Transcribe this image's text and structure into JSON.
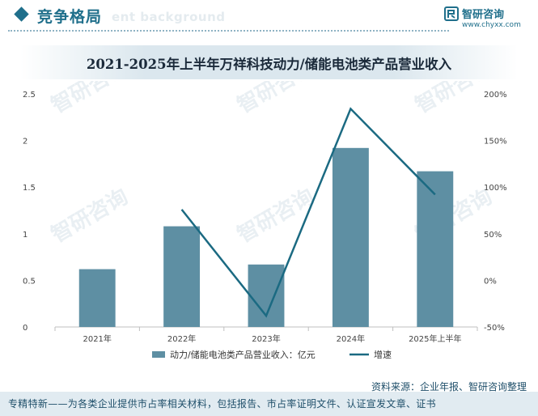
{
  "header": {
    "title": "竞争格局",
    "watermark_text": "ent background",
    "brand_name": "智研咨询",
    "brand_url": "www.chyxx.com"
  },
  "watermark_text": "智研咨询",
  "colors": {
    "accent": "#1f6f8b",
    "bar": "#5e8fa3",
    "line": "#1b6a82",
    "title_band": "#dbe7ee",
    "footer_band": "#e1ebf1"
  },
  "chart_data": {
    "type": "bar",
    "title": "2021-2025年上半年万祥科技动力/储能电池类产品营业收入",
    "categories": [
      "2021年",
      "2022年",
      "2023年",
      "2024年",
      "2025年上半年"
    ],
    "series": [
      {
        "name": "动力/储能电池类产品营业收入：亿元",
        "type": "bar",
        "axis": "left",
        "values": [
          0.62,
          1.08,
          0.67,
          1.92,
          1.67
        ]
      },
      {
        "name": "增速",
        "type": "line",
        "axis": "right",
        "unit": "%",
        "values": [
          null,
          76,
          -38,
          184,
          92
        ]
      }
    ],
    "y_left": {
      "min": 0,
      "max": 2.5,
      "ticks": [
        "0",
        "0.5",
        "1",
        "1.5",
        "2",
        "2.5"
      ]
    },
    "y_right": {
      "min": -50,
      "max": 200,
      "ticks": [
        "-50%",
        "0%",
        "50%",
        "100%",
        "150%",
        "200%"
      ]
    },
    "grid": false,
    "legend_position": "bottom"
  },
  "source": "资料来源：企业年报、智研咨询整理",
  "footer": "专精特新——为各类企业提供市占率相关材料，包括报告、市占率证明文件、认证宣发文章、证书"
}
